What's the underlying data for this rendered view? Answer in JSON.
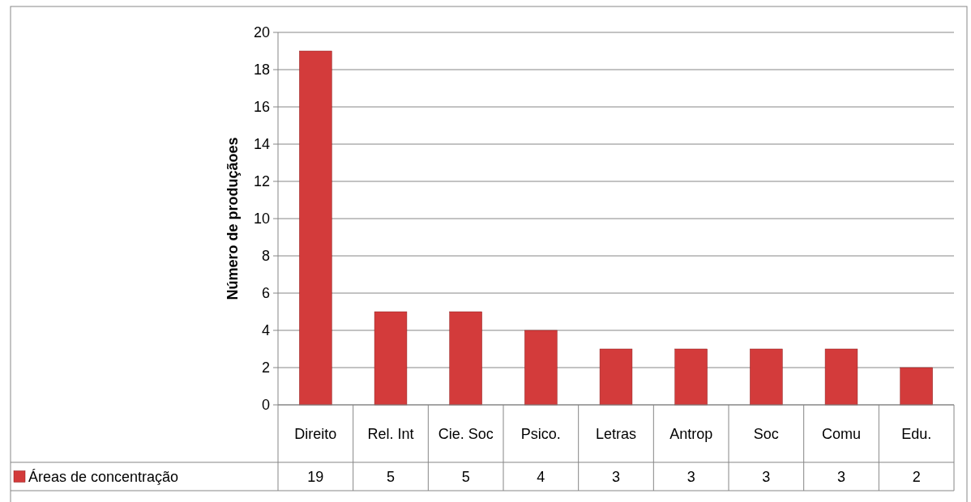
{
  "chart_data": {
    "type": "bar",
    "ylabel": "Número de produçãoes",
    "categories": [
      "Direito",
      "Rel. Int",
      "Cie. Soc",
      "Psico.",
      "Letras",
      "Antrop",
      "Soc",
      "Comu",
      "Edu."
    ],
    "series": [
      {
        "name": "Áreas de concentração",
        "color": "#d33b3b",
        "values": [
          19,
          5,
          5,
          4,
          3,
          3,
          3,
          3,
          2
        ]
      }
    ],
    "ylim": [
      0,
      20
    ],
    "yticks": [
      0,
      2,
      4,
      6,
      8,
      10,
      12,
      14,
      16,
      18,
      20
    ],
    "grid": "y",
    "legend": "bottom",
    "data_labels": true
  }
}
